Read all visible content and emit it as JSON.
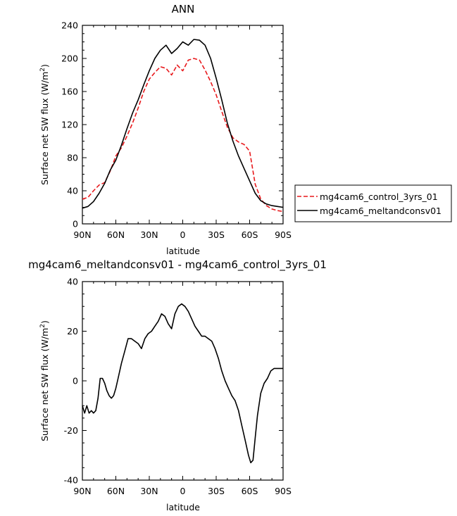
{
  "chart_data": [
    {
      "type": "line",
      "title": "ANN",
      "xlabel": "latitude",
      "ylabel": "Surface net SW flux (W/m",
      "ylabel_sup": "2",
      "ylabel_close": ")",
      "x_ticks": [
        90,
        60,
        30,
        0,
        -30,
        -60,
        -90
      ],
      "x_tick_labels": [
        "90N",
        "60N",
        "30N",
        "0",
        "30S",
        "60S",
        "90S"
      ],
      "y_ticks": [
        0,
        40,
        80,
        120,
        160,
        200,
        240
      ],
      "y_tick_labels": [
        "0",
        "40",
        "80",
        "120",
        "160",
        "200",
        "240"
      ],
      "xlim": [
        90,
        -90
      ],
      "ylim": [
        0,
        240
      ],
      "legend_position": "right",
      "series": [
        {
          "name": "mg4cam6_control_3yrs_01",
          "color": "#e8191c",
          "dash": "dashed",
          "x": [
            90,
            85,
            80,
            75,
            70,
            65,
            60,
            55,
            50,
            45,
            40,
            35,
            30,
            25,
            20,
            15,
            10,
            5,
            0,
            -5,
            -10,
            -15,
            -20,
            -25,
            -30,
            -35,
            -40,
            -45,
            -50,
            -55,
            -60,
            -65,
            -70,
            -75,
            -80,
            -85,
            -90
          ],
          "y": [
            30,
            32,
            40,
            47,
            50,
            64,
            82,
            92,
            106,
            122,
            140,
            160,
            175,
            183,
            190,
            188,
            180,
            192,
            185,
            198,
            200,
            198,
            186,
            172,
            156,
            136,
            117,
            104,
            99,
            96,
            88,
            48,
            30,
            22,
            18,
            16,
            15
          ]
        },
        {
          "name": "mg4cam6_meltandconsv01",
          "color": "#000000",
          "dash": "solid",
          "x": [
            90,
            85,
            80,
            75,
            70,
            65,
            60,
            55,
            50,
            45,
            40,
            35,
            30,
            25,
            20,
            15,
            10,
            5,
            0,
            -5,
            -10,
            -15,
            -20,
            -25,
            -30,
            -35,
            -40,
            -45,
            -50,
            -55,
            -60,
            -65,
            -70,
            -75,
            -80,
            -85,
            -90
          ],
          "y": [
            19,
            21,
            27,
            37,
            49,
            65,
            77,
            95,
            115,
            134,
            150,
            168,
            185,
            200,
            210,
            216,
            206,
            212,
            220,
            216,
            223,
            222,
            216,
            200,
            176,
            150,
            122,
            100,
            82,
            67,
            52,
            37,
            28,
            24,
            22,
            21,
            20
          ]
        }
      ]
    },
    {
      "type": "line",
      "title": "mg4cam6_meltandconsv01 - mg4cam6_control_3yrs_01",
      "xlabel": "latitude",
      "ylabel": "Surface net SW flux (W/m",
      "ylabel_sup": "2",
      "ylabel_close": ")",
      "x_ticks": [
        90,
        60,
        30,
        0,
        -30,
        -60,
        -90
      ],
      "x_tick_labels": [
        "90N",
        "60N",
        "30N",
        "0",
        "30S",
        "60S",
        "90S"
      ],
      "y_ticks": [
        -40,
        -20,
        0,
        20,
        40
      ],
      "y_tick_labels": [
        "-40",
        "-20",
        "0",
        "20",
        "40"
      ],
      "xlim": [
        90,
        -90
      ],
      "ylim": [
        -40,
        40
      ],
      "series": [
        {
          "color": "#000000",
          "dash": "solid",
          "x": [
            90,
            88,
            86,
            84,
            82,
            80,
            78,
            76,
            74,
            72,
            70,
            68,
            66,
            64,
            62,
            60,
            58,
            55,
            52,
            49,
            46,
            43,
            40,
            37,
            34,
            31,
            28,
            25,
            22,
            19,
            16,
            13,
            10,
            7,
            4,
            1,
            -2,
            -5,
            -8,
            -11,
            -14,
            -17,
            -20,
            -23,
            -26,
            -29,
            -32,
            -35,
            -38,
            -41,
            -44,
            -47,
            -50,
            -53,
            -56,
            -59,
            -61,
            -63,
            -65,
            -67,
            -70,
            -73,
            -76,
            -79,
            -82,
            -85,
            -88,
            -90
          ],
          "y": [
            -10,
            -13,
            -10,
            -13,
            -12,
            -13,
            -12,
            -7,
            1,
            1,
            -1,
            -4,
            -6,
            -7,
            -6,
            -3,
            1,
            7,
            12,
            17,
            17,
            16,
            15,
            13,
            17,
            19,
            20,
            22,
            24,
            27,
            26,
            23,
            21,
            27,
            30,
            31,
            30,
            28,
            25,
            22,
            20,
            18,
            18,
            17,
            16,
            13,
            9,
            4,
            0,
            -3,
            -6,
            -8,
            -12,
            -18,
            -24,
            -30,
            -33,
            -32,
            -23,
            -14,
            -5,
            -1,
            1,
            4,
            5,
            5,
            5,
            5
          ]
        }
      ]
    }
  ]
}
